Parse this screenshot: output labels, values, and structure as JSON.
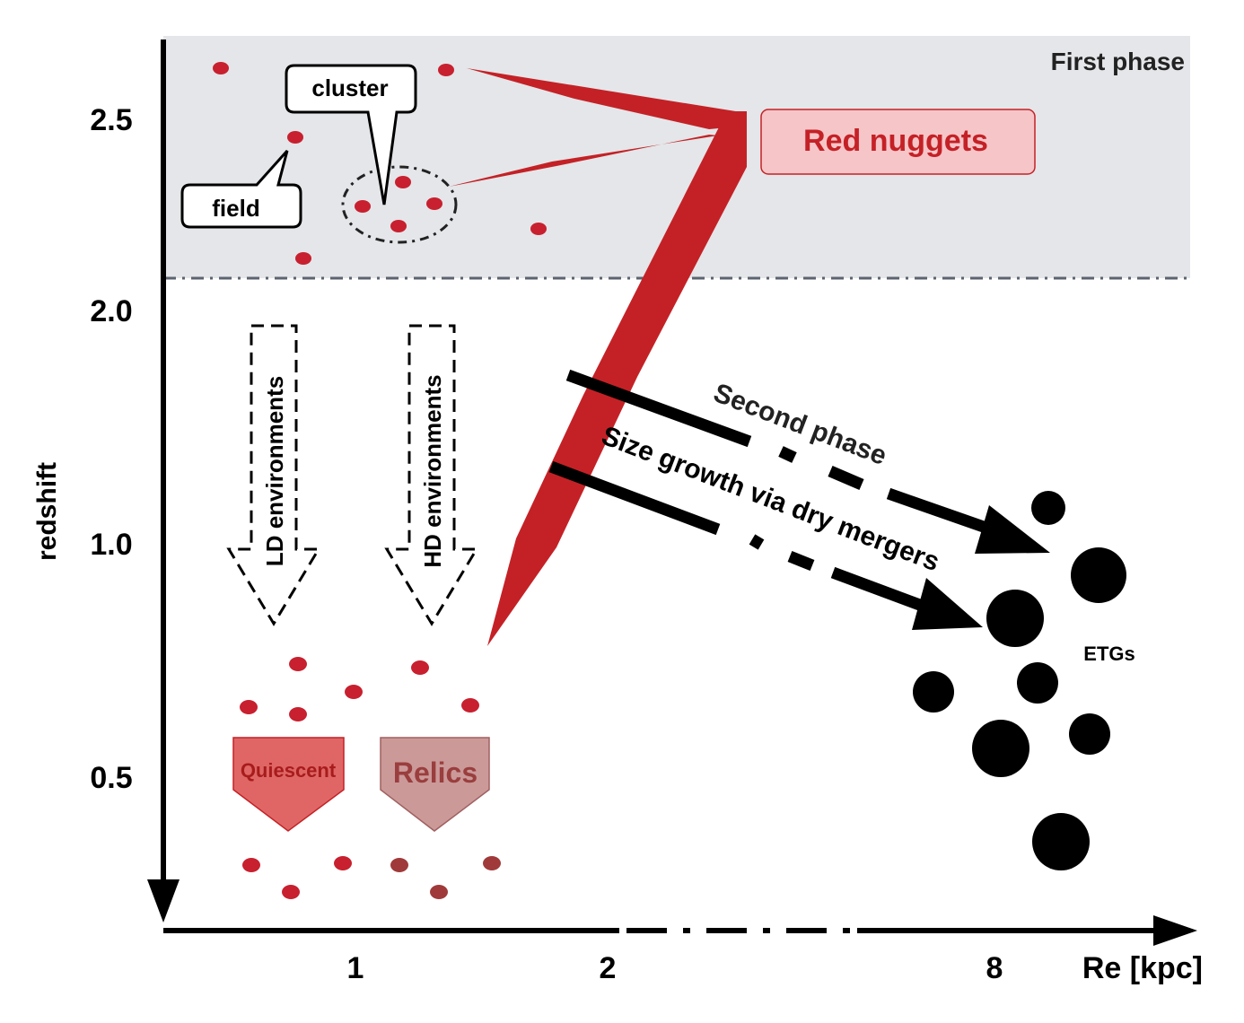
{
  "colors": {
    "red": "#c42126",
    "red_dot": "#c8202f",
    "first_phase_bg": "#e4e6e9",
    "red_nuggets_fill": "#f6c5c8",
    "quiescent_fill": "#e06666",
    "relics_fill": "#cc9999",
    "relics_dot": "#a03a3a",
    "black": "#000000"
  },
  "y_axis": {
    "label": "redshift",
    "ticks": [
      "2.5",
      "2.0",
      "1.0",
      "0.5"
    ]
  },
  "x_axis": {
    "label": "Re [kpc]",
    "ticks": [
      "1",
      "2",
      "8"
    ]
  },
  "first_phase": {
    "label": "First phase"
  },
  "callouts": {
    "cluster": "cluster",
    "field": "field"
  },
  "red_nuggets": {
    "label": "Red nuggets"
  },
  "environments": {
    "ld": "LD environments",
    "hd": "HD environments"
  },
  "second_phase": {
    "label": "Second phase",
    "sublabel": "Size growth via dry mergers"
  },
  "etgs": {
    "label": "ETGs"
  },
  "quiescent": {
    "label": "Quiescent"
  },
  "relics": {
    "label": "Relics"
  }
}
